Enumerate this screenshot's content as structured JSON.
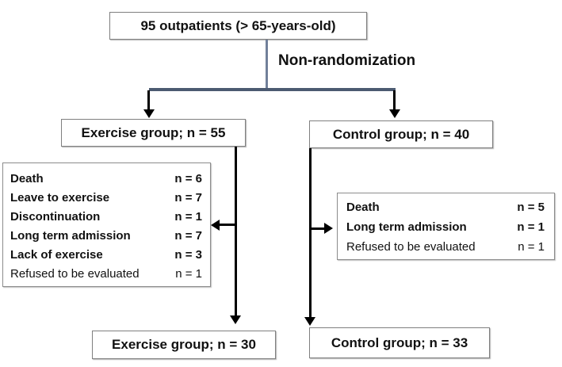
{
  "figure": {
    "top_box": "95 outpatients (> 65-years-old)",
    "branch_label": "Non-randomization",
    "groups": {
      "exercise": "Exercise group; n = 55",
      "control": "Control group; n = 40"
    },
    "exercise_exclusions": [
      {
        "label": "Death",
        "value": "n = 6"
      },
      {
        "label": "Leave to exercise",
        "value": "n = 7"
      },
      {
        "label": "Discontinuation",
        "value": "n = 1"
      },
      {
        "label": "Long term admission",
        "value": "n = 7"
      },
      {
        "label": "Lack of exercise",
        "value": "n = 3"
      },
      {
        "label": "Refused to be evaluated",
        "value": "n = 1"
      }
    ],
    "control_exclusions": [
      {
        "label": "Death",
        "value": "n = 5"
      },
      {
        "label": "Long term admission",
        "value": "n = 1"
      },
      {
        "label": "Refused to be evaluated",
        "value": "n = 1"
      }
    ],
    "final": {
      "exercise": "Exercise group; n = 30",
      "control": "Control group; n = 33"
    },
    "colors": {
      "connector_stem": "#71809a",
      "connector_branch": "#4c5a71",
      "arrow": "#000000",
      "box_border": "#7f7f7f",
      "text": "#111111"
    }
  }
}
